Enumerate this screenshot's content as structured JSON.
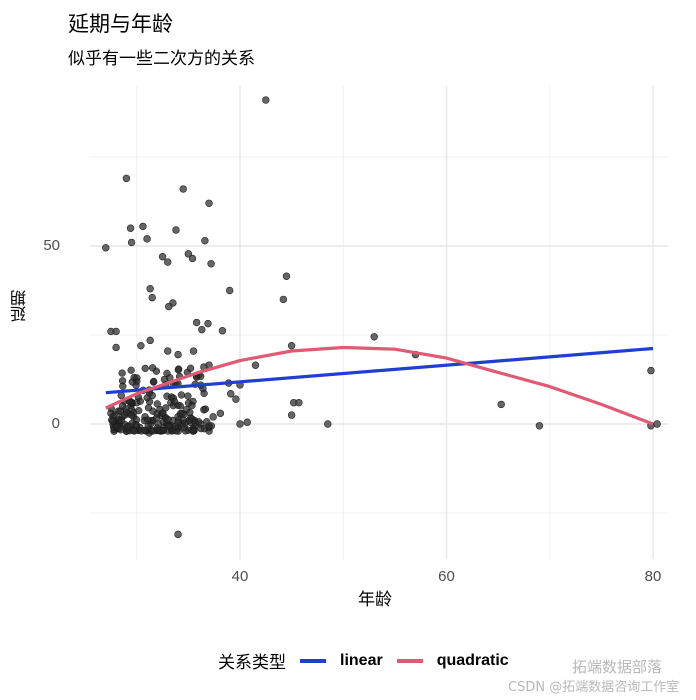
{
  "chart_data": {
    "type": "scatter",
    "title": "延期与年龄",
    "subtitle": "似乎有一些二次方的关系",
    "xlabel": "年龄",
    "ylabel": "延期",
    "xlim": [
      25.5,
      81.5
    ],
    "ylim": [
      -38,
      95
    ],
    "x_ticks": [
      40,
      60,
      80
    ],
    "y_ticks": [
      0,
      50
    ],
    "x_minor_gridlines": [
      30,
      50,
      70
    ],
    "y_minor_gridlines": [
      -25,
      25,
      75
    ],
    "grid": true,
    "legend": {
      "title": "关系类型",
      "position": "bottom",
      "entries": [
        {
          "label": "linear",
          "color": "#1f3fd0"
        },
        {
          "label": "quadratic",
          "color": "#df5a72"
        }
      ]
    },
    "series": [
      {
        "name": "points",
        "type": "scatter",
        "color": "#404040",
        "points": [
          [
            42.5,
            91
          ],
          [
            29.0,
            69
          ],
          [
            34.5,
            66
          ],
          [
            37.0,
            62
          ],
          [
            29.4,
            55
          ],
          [
            30.6,
            55.5
          ],
          [
            33.8,
            54.5
          ],
          [
            31.0,
            52
          ],
          [
            36.6,
            51.5
          ],
          [
            29.5,
            51
          ],
          [
            27.0,
            49.5
          ],
          [
            35.0,
            47.8
          ],
          [
            32.5,
            47
          ],
          [
            35.4,
            46.5
          ],
          [
            33.0,
            45.5
          ],
          [
            37.2,
            45
          ],
          [
            44.5,
            41.5
          ],
          [
            31.3,
            38
          ],
          [
            39.0,
            37.5
          ],
          [
            44.2,
            35
          ],
          [
            31.5,
            35.5
          ],
          [
            33.5,
            34
          ],
          [
            33.1,
            33
          ],
          [
            35.8,
            28.5
          ],
          [
            36.9,
            28.2
          ],
          [
            36.3,
            26.5
          ],
          [
            27.5,
            26
          ],
          [
            28.0,
            26
          ],
          [
            53.0,
            24.5
          ],
          [
            38.3,
            26.2
          ],
          [
            31.3,
            23.5
          ],
          [
            30.4,
            22
          ],
          [
            33.0,
            20.5
          ],
          [
            35.5,
            20.5
          ],
          [
            45.0,
            22
          ],
          [
            28.0,
            21.5
          ],
          [
            34.0,
            19.5
          ],
          [
            37.0,
            16.5
          ],
          [
            41.5,
            16.5
          ],
          [
            57.0,
            19.5
          ],
          [
            36.5,
            16
          ],
          [
            33.2,
            13
          ],
          [
            35.8,
            13.5
          ],
          [
            30.0,
            12
          ],
          [
            32.8,
            11
          ],
          [
            38.9,
            11.5
          ],
          [
            40.0,
            11
          ],
          [
            27.5,
            3
          ],
          [
            28.5,
            8
          ],
          [
            29.5,
            4
          ],
          [
            30.0,
            6
          ],
          [
            30.8,
            2
          ],
          [
            31.5,
            8
          ],
          [
            32.5,
            3
          ],
          [
            33.3,
            6
          ],
          [
            34.0,
            2
          ],
          [
            34.8,
            4
          ],
          [
            35.6,
            1
          ],
          [
            36.5,
            4
          ],
          [
            37.4,
            2
          ],
          [
            38.1,
            3
          ],
          [
            39.1,
            8.5
          ],
          [
            39.6,
            7
          ],
          [
            28.0,
            0.5
          ],
          [
            29.0,
            -2
          ],
          [
            30.3,
            -1
          ],
          [
            31.2,
            -2.5
          ],
          [
            32.1,
            0
          ],
          [
            33.5,
            1
          ],
          [
            34.4,
            0
          ],
          [
            35.2,
            0.5
          ],
          [
            36.2,
            0
          ],
          [
            37.0,
            -1
          ],
          [
            40.0,
            0
          ],
          [
            40.7,
            0.5
          ],
          [
            45.2,
            6
          ],
          [
            45.7,
            6
          ],
          [
            45.0,
            2.5
          ],
          [
            48.5,
            0
          ],
          [
            65.3,
            5.5
          ],
          [
            69.0,
            -0.5
          ],
          [
            79.8,
            15
          ],
          [
            79.8,
            -0.5
          ],
          [
            80.4,
            0
          ],
          [
            34.0,
            -31
          ],
          [
            27.8,
            -2
          ]
        ]
      },
      {
        "name": "linear",
        "type": "line",
        "color": "#1f3fd0",
        "x": [
          27,
          80
        ],
        "y": [
          8.8,
          21.2
        ]
      },
      {
        "name": "quadratic",
        "type": "line",
        "color": "#df5a72",
        "x": [
          27,
          30,
          33,
          36,
          40,
          45,
          50,
          55,
          60,
          65,
          70,
          75,
          80
        ],
        "y": [
          4.5,
          8.5,
          11.5,
          14.5,
          17.8,
          20.5,
          21.5,
          21.0,
          18.5,
          14.5,
          10.5,
          5.5,
          0
        ]
      }
    ]
  },
  "watermark": {
    "line1": "拓端数据部落",
    "line2": "CSDN @拓端数据咨询工作室"
  }
}
